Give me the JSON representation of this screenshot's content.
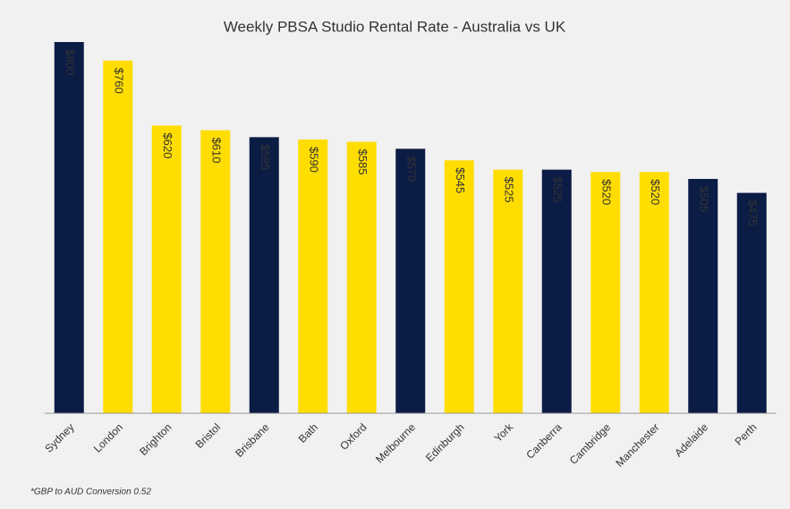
{
  "chart_data": {
    "type": "bar",
    "title": "Weekly PBSA Studio Rental Rate - Australia vs UK",
    "categories": [
      "Sydney",
      "London",
      "Brighton",
      "Bristol",
      "Brisbane",
      "Bath",
      "Oxford",
      "Melbourne",
      "Edinburgh",
      "York",
      "Canberra",
      "Cambridge",
      "Manchester",
      "Adelaide",
      "Perth"
    ],
    "values": [
      800,
      760,
      620,
      610,
      595,
      590,
      585,
      570,
      545,
      525,
      525,
      520,
      520,
      505,
      475
    ],
    "value_labels": [
      "$800",
      "$760",
      "$620",
      "$610",
      "$595",
      "$590",
      "$585",
      "$570",
      "$545",
      "$525",
      "$525",
      "$520",
      "$520",
      "$505",
      "$475"
    ],
    "colors": [
      "#0b1c45",
      "#ffdd00",
      "#ffdd00",
      "#ffdd00",
      "#0b1c45",
      "#ffdd00",
      "#ffdd00",
      "#0b1c45",
      "#ffdd00",
      "#ffdd00",
      "#0b1c45",
      "#ffdd00",
      "#ffdd00",
      "#0b1c45",
      "#0b1c45"
    ],
    "ylim": [
      0,
      800
    ],
    "footnote": "*GBP to AUD Conversion 0.52"
  }
}
